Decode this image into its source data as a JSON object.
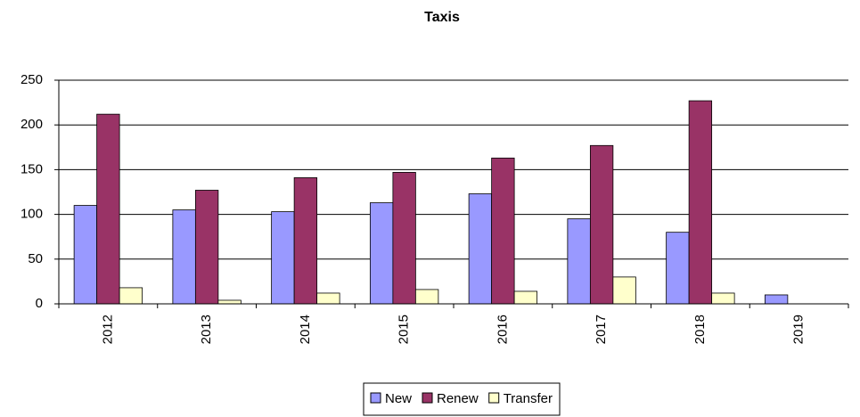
{
  "chart_data": {
    "type": "bar",
    "title": "Taxis",
    "categories": [
      "2012",
      "2013",
      "2014",
      "2015",
      "2016",
      "2017",
      "2018",
      "2019"
    ],
    "series": [
      {
        "name": "New",
        "color": "#9999ff",
        "values": [
          110,
          105,
          103,
          113,
          123,
          95,
          80,
          10
        ]
      },
      {
        "name": "Renew",
        "color": "#993366",
        "values": [
          212,
          127,
          141,
          147,
          163,
          177,
          227,
          null
        ]
      },
      {
        "name": "Transfer",
        "color": "#ffffcc",
        "values": [
          18,
          4,
          12,
          16,
          14,
          30,
          12,
          null
        ]
      }
    ],
    "ylim": [
      0,
      250
    ],
    "yticks": [
      0,
      50,
      100,
      150,
      200,
      250
    ],
    "grid": true,
    "legend": "bottom"
  }
}
